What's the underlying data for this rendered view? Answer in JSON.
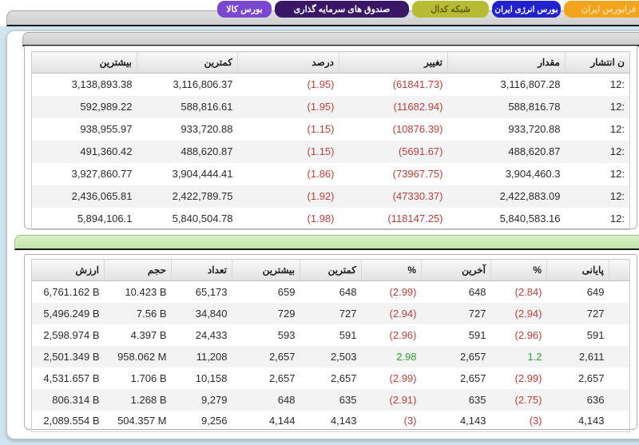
{
  "tabs": [
    {
      "label": "بورس کالا"
    },
    {
      "label": "صندوق های سرمایه گذاری"
    },
    {
      "label": "شبکه کدال"
    },
    {
      "label": "بورس انرژی ایران"
    },
    {
      "label": "فرابورس ایران"
    }
  ],
  "colors": {
    "tab_kala": "#7a48d0",
    "tab_funds": "#3a1666",
    "tab_codal": "#b7ba33",
    "tab_energy": "#2222cc",
    "tab_farabourse": "#f2a41c",
    "negative": "#b9403a",
    "positive": "#2f9e33",
    "green_divider": "#c9e7b2",
    "page_background": "#d0e4f0"
  },
  "indices_table": {
    "headers": [
      "بیشترین",
      "کمترین",
      "درصد",
      "تغییر",
      "مقدار",
      "ن انتشار"
    ],
    "rows": [
      [
        "3,138,893.38",
        "3,116,806.37",
        {
          "t": "(1.95)",
          "s": "neg"
        },
        {
          "t": "(61841.73)",
          "s": "neg"
        },
        "3,116,807.28",
        "12:"
      ],
      [
        "592,989.22",
        "588,816.61",
        {
          "t": "(1.95)",
          "s": "neg"
        },
        {
          "t": "(11682.94)",
          "s": "neg"
        },
        "588,816.78",
        "12:"
      ],
      [
        "938,955.97",
        "933,720.88",
        {
          "t": "(1.15)",
          "s": "neg"
        },
        {
          "t": "(10876.39)",
          "s": "neg"
        },
        "933,720.88",
        "12:"
      ],
      [
        "491,360.42",
        "488,620.87",
        {
          "t": "(1.15)",
          "s": "neg"
        },
        {
          "t": "(5691.67)",
          "s": "neg"
        },
        "488,620.87",
        "12:"
      ],
      [
        "3,927,860.77",
        "3,904,444.41",
        {
          "t": "(1.86)",
          "s": "neg"
        },
        {
          "t": "(73967.75)",
          "s": "neg"
        },
        "3,904,460.3",
        "12:"
      ],
      [
        "2,436,065.81",
        "2,422,789.75",
        {
          "t": "(1.92)",
          "s": "neg"
        },
        {
          "t": "(47330.37)",
          "s": "neg"
        },
        "2,422,883.09",
        "12:"
      ],
      [
        "5,894,106.1",
        "5,840,504.78",
        {
          "t": "(1.98)",
          "s": "neg"
        },
        {
          "t": "(118147.25)",
          "s": "neg"
        },
        "5,840,583.16",
        "12:"
      ]
    ]
  },
  "market_table": {
    "headers": [
      "ارزش",
      "حجم",
      "تعداد",
      "بیشترین",
      "کمترین",
      "%",
      "آخرین",
      "%",
      "پایانی"
    ],
    "rows": [
      [
        "6,761.162 B",
        "10.423 B",
        "65,173",
        "659",
        "648",
        {
          "t": "(2.99)",
          "s": "neg"
        },
        "648",
        {
          "t": "(2.84)",
          "s": "neg"
        },
        "649"
      ],
      [
        "5,496.249 B",
        "7.56 B",
        "34,840",
        "729",
        "727",
        {
          "t": "(2.94)",
          "s": "neg"
        },
        "727",
        {
          "t": "(2.94)",
          "s": "neg"
        },
        "727"
      ],
      [
        "2,598.974 B",
        "4.397 B",
        "24,433",
        "593",
        "591",
        {
          "t": "(2.96)",
          "s": "neg"
        },
        "591",
        {
          "t": "(2.96)",
          "s": "neg"
        },
        "591"
      ],
      [
        "2,501.349 B",
        "958.062 M",
        "11,208",
        "2,657",
        "2,503",
        {
          "t": "2.98",
          "s": "pos"
        },
        "2,657",
        {
          "t": "1.2",
          "s": "pos"
        },
        "2,611"
      ],
      [
        "4,531.657 B",
        "1.706 B",
        "10,158",
        "2,657",
        "2,657",
        {
          "t": "(2.99)",
          "s": "neg"
        },
        "2,657",
        {
          "t": "(2.99)",
          "s": "neg"
        },
        "2,657"
      ],
      [
        "806.314 B",
        "1.268 B",
        "9,279",
        "648",
        "635",
        {
          "t": "(2.91)",
          "s": "neg"
        },
        "635",
        {
          "t": "(2.75)",
          "s": "neg"
        },
        "636"
      ],
      [
        "2,089.554 B",
        "504.357 M",
        "9,256",
        "4,144",
        "4,143",
        {
          "t": "(3)",
          "s": "neg"
        },
        "4,143",
        {
          "t": "(3)",
          "s": "neg"
        },
        "4,143"
      ]
    ]
  }
}
